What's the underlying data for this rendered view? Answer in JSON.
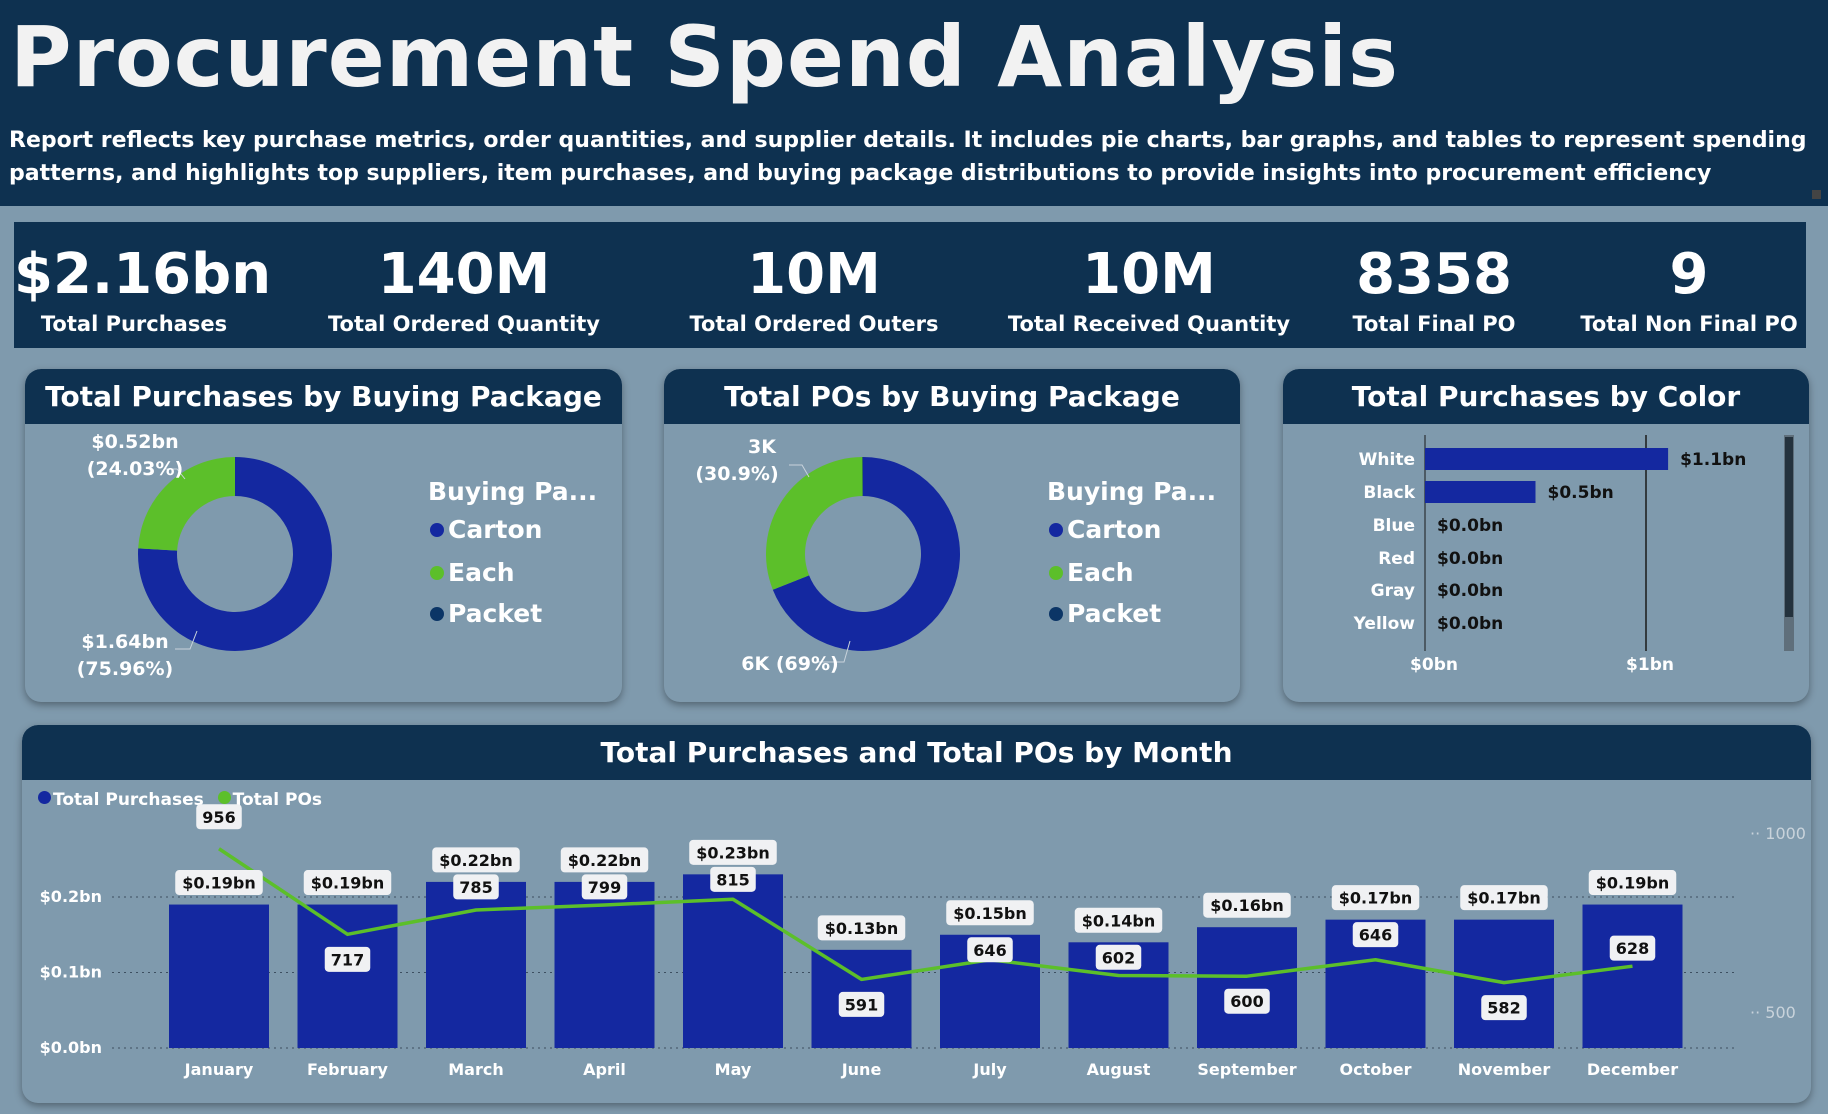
{
  "header": {
    "title": "Procurement Spend Analysis",
    "subtitle": "Report reflects key purchase metrics, order quantities, and supplier details. It includes pie charts, bar graphs, and tables to represent spending patterns, and highlights top suppliers, item purchases, and buying package distributions to provide insights into procurement efficiency"
  },
  "kpis": [
    {
      "value": "$2.16bn",
      "label": "Total Purchases"
    },
    {
      "value": "140M",
      "label": "Total Ordered Quantity"
    },
    {
      "value": "10M",
      "label": "Total Ordered Outers"
    },
    {
      "value": "10M",
      "label": "Total Received Quantity"
    },
    {
      "value": "8358",
      "label": "Total Final PO"
    },
    {
      "value": "9",
      "label": "Total Non Final PO"
    }
  ],
  "colors": {
    "navy": "#0e3150",
    "carton": "#1428a0",
    "each": "#5cbf2a",
    "packet": "#0b3566",
    "panel": "#7f9aad"
  },
  "donut_purchases": {
    "title": "Total Purchases by Buying Package",
    "legend_title": "Buying Pa...",
    "legend": [
      "Carton",
      "Each",
      "Packet"
    ],
    "label_each": "$0.52bn",
    "label_each_pct": "(24.03%)",
    "label_carton": "$1.64bn",
    "label_carton_pct": "(75.96%)"
  },
  "donut_pos": {
    "title": "Total POs by Buying Package",
    "legend_title": "Buying Pa...",
    "legend": [
      "Carton",
      "Each",
      "Packet"
    ],
    "label_each": "3K",
    "label_each_pct": "(30.9%)",
    "label_carton": "6K (69%)"
  },
  "color_chart": {
    "title": "Total Purchases by Color",
    "tick_0": "$0bn",
    "tick_1": "$1bn"
  },
  "month_chart": {
    "title": "Total Purchases and Total POs by Month",
    "legend_purchases": "Total Purchases",
    "legend_pos": "Total POs",
    "y_ticks": [
      "$0.0bn",
      "$0.1bn",
      "$0.2bn"
    ],
    "y2_ticks": [
      "500",
      "1000"
    ]
  },
  "chart_data": [
    {
      "type": "pie",
      "title": "Total Purchases by Buying Package",
      "legend_title": "Buying Pa...",
      "categories": [
        "Carton",
        "Each",
        "Packet"
      ],
      "values": [
        1.64,
        0.52,
        0.0
      ],
      "value_labels": [
        "$1.64bn",
        "$0.52bn",
        ""
      ],
      "percent_labels": [
        "(75.96%)",
        "(24.03%)",
        ""
      ],
      "units": "$bn"
    },
    {
      "type": "pie",
      "title": "Total POs by Buying Package",
      "legend_title": "Buying Pa...",
      "categories": [
        "Carton",
        "Each",
        "Packet"
      ],
      "values": [
        69,
        30.9,
        0.1
      ],
      "value_labels": [
        "6K (69%)",
        "3K",
        ""
      ],
      "percent_labels": [
        "",
        "(30.9%)",
        ""
      ],
      "units": "%"
    },
    {
      "type": "bar",
      "orientation": "horizontal",
      "title": "Total Purchases by Color",
      "categories": [
        "White",
        "Black",
        "Blue",
        "Red",
        "Gray",
        "Yellow"
      ],
      "values": [
        1.1,
        0.5,
        0.0,
        0.0,
        0.0,
        0.0
      ],
      "value_labels": [
        "$1.1bn",
        "$0.5bn",
        "$0.0bn",
        "$0.0bn",
        "$0.0bn",
        "$0.0bn"
      ],
      "xlim": [
        0,
        1.2
      ],
      "x_ticks": [
        "$0bn",
        "$1bn"
      ],
      "grid": true
    },
    {
      "type": "bar",
      "title": "Total Purchases and Total POs by Month",
      "categories": [
        "January",
        "February",
        "March",
        "April",
        "May",
        "June",
        "July",
        "August",
        "September",
        "October",
        "November",
        "December"
      ],
      "series": [
        {
          "name": "Total Purchases",
          "type": "bar",
          "axis": "left",
          "values": [
            0.19,
            0.19,
            0.22,
            0.22,
            0.23,
            0.13,
            0.15,
            0.14,
            0.16,
            0.17,
            0.17,
            0.19
          ],
          "labels": [
            "$0.19bn",
            "$0.19bn",
            "$0.22bn",
            "$0.22bn",
            "$0.23bn",
            "$0.13bn",
            "$0.15bn",
            "$0.14bn",
            "$0.16bn",
            "$0.17bn",
            "$0.17bn",
            "$0.19bn"
          ]
        },
        {
          "name": "Total POs",
          "type": "line",
          "axis": "right",
          "values": [
            956,
            717,
            785,
            799,
            815,
            591,
            646,
            602,
            600,
            646,
            582,
            628
          ],
          "labels": [
            "956",
            "717",
            "785",
            "799",
            "815",
            "591",
            "646",
            "602",
            "600",
            "646",
            "582",
            "628"
          ]
        }
      ],
      "ylim": [
        0,
        0.23
      ],
      "y_ticks": [
        "$0.0bn",
        "$0.1bn",
        "$0.2bn"
      ],
      "y2lim": [
        300,
        1000
      ],
      "y2_ticks": [
        "500",
        "1000"
      ],
      "legend_position": "top-left",
      "grid": true
    }
  ]
}
